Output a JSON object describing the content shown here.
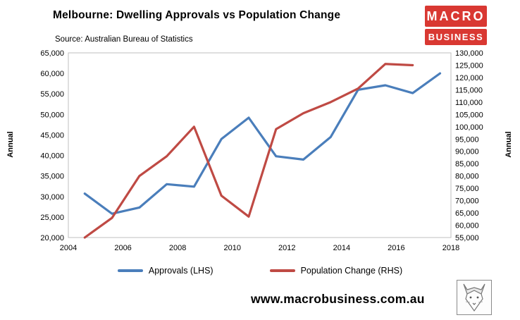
{
  "header": {
    "title": "Melbourne: Dwelling Approvals vs Population Change",
    "source": "Source: Australian Bureau of Statistics"
  },
  "logo": {
    "line1": "MACRO",
    "line2": "BUSINESS",
    "background": "#d93832"
  },
  "axes": {
    "left_label": "Annual",
    "right_label": "Annual"
  },
  "footer": {
    "website": "www.macrobusiness.com.au"
  },
  "chart_data": {
    "type": "line",
    "title": "Melbourne: Dwelling Approvals vs Population Change",
    "subtitle": "Source: Australian Bureau of Statistics",
    "xlabel": "",
    "ylabel_left": "Annual",
    "ylabel_right": "Annual",
    "grid": false,
    "legend_position": "bottom",
    "x_range": [
      2004,
      2018
    ],
    "x_step": 2,
    "x_tick_labels": [
      "2004",
      "2006",
      "2008",
      "2010",
      "2012",
      "2014",
      "2016",
      "2018"
    ],
    "lhs_range": [
      20000,
      65000
    ],
    "rhs_range": [
      55000,
      130000
    ],
    "tick_step": 5000,
    "x": [
      2004.6,
      2005.6,
      2006.6,
      2007.6,
      2008.6,
      2009.6,
      2010.6,
      2011.6,
      2012.6,
      2013.6,
      2014.6,
      2015.6,
      2016.6,
      2017.6
    ],
    "series": [
      {
        "name": "Approvals (LHS)",
        "axis": "lhs",
        "color": "#4a7ebb",
        "values": [
          30700,
          25800,
          27300,
          33000,
          32400,
          44000,
          49200,
          39800,
          39000,
          44500,
          56000,
          57100,
          55200,
          60000
        ]
      },
      {
        "name": "Population Change (RHS)",
        "axis": "rhs",
        "color": "#bf4a44",
        "values": [
          55000,
          63000,
          80000,
          88000,
          100000,
          72000,
          63500,
          99000,
          105500,
          110000,
          115500,
          125500,
          125000,
          null
        ]
      }
    ]
  }
}
